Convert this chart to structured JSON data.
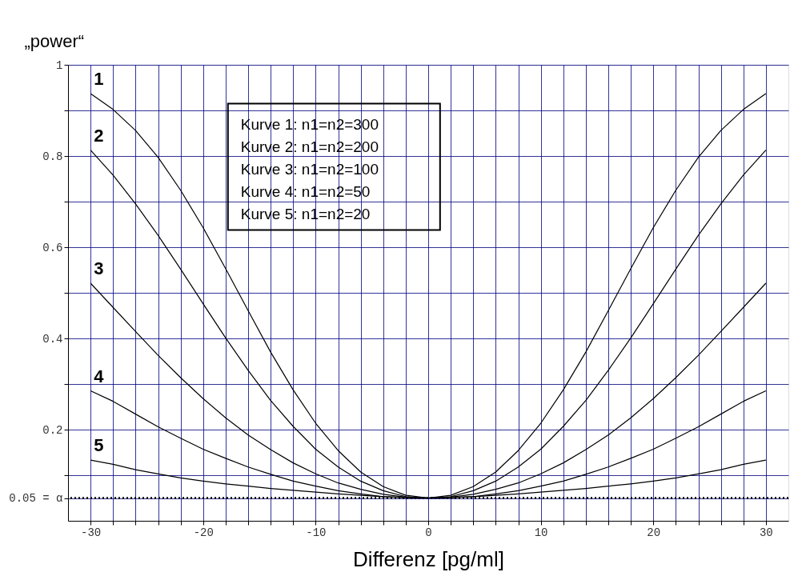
{
  "chart_data": {
    "type": "line",
    "ylabel": "„power“",
    "xlabel": "Differenz [pg/ml]",
    "x": [
      -30,
      -28,
      -26,
      -24,
      -22,
      -20,
      -18,
      -16,
      -14,
      -12,
      -10,
      -8,
      -6,
      -4,
      -2,
      0,
      2,
      4,
      6,
      8,
      10,
      12,
      14,
      16,
      18,
      20,
      22,
      24,
      26,
      28,
      30
    ],
    "series": [
      {
        "name": "1",
        "color": "#000000",
        "values": [
          0.937,
          0.902,
          0.856,
          0.797,
          0.725,
          0.643,
          0.553,
          0.461,
          0.37,
          0.287,
          0.214,
          0.154,
          0.107,
          0.075,
          0.056,
          0.05,
          0.056,
          0.075,
          0.107,
          0.154,
          0.214,
          0.287,
          0.37,
          0.461,
          0.553,
          0.643,
          0.725,
          0.797,
          0.856,
          0.902,
          0.937
        ]
      },
      {
        "name": "2",
        "color": "#000000",
        "values": [
          0.813,
          0.758,
          0.695,
          0.626,
          0.552,
          0.476,
          0.401,
          0.33,
          0.264,
          0.207,
          0.157,
          0.118,
          0.087,
          0.066,
          0.053,
          0.05,
          0.053,
          0.066,
          0.087,
          0.118,
          0.157,
          0.207,
          0.264,
          0.33,
          0.401,
          0.476,
          0.552,
          0.626,
          0.695,
          0.758,
          0.813
        ]
      },
      {
        "name": "3",
        "color": "#000000",
        "values": [
          0.521,
          0.468,
          0.415,
          0.363,
          0.314,
          0.268,
          0.226,
          0.188,
          0.156,
          0.127,
          0.103,
          0.083,
          0.069,
          0.058,
          0.052,
          0.05,
          0.052,
          0.058,
          0.069,
          0.083,
          0.103,
          0.127,
          0.156,
          0.188,
          0.226,
          0.268,
          0.314,
          0.363,
          0.415,
          0.468,
          0.521
        ]
      },
      {
        "name": "4",
        "color": "#000000",
        "values": [
          0.285,
          0.262,
          0.234,
          0.206,
          0.181,
          0.157,
          0.137,
          0.118,
          0.102,
          0.087,
          0.076,
          0.066,
          0.059,
          0.053,
          0.051,
          0.05,
          0.051,
          0.053,
          0.059,
          0.066,
          0.076,
          0.087,
          0.102,
          0.118,
          0.137,
          0.157,
          0.181,
          0.206,
          0.234,
          0.262,
          0.285
        ]
      },
      {
        "name": "5",
        "color": "#000000",
        "values": [
          0.133,
          0.124,
          0.112,
          0.103,
          0.094,
          0.087,
          0.081,
          0.076,
          0.071,
          0.067,
          0.063,
          0.059,
          0.056,
          0.053,
          0.051,
          0.05,
          0.051,
          0.053,
          0.056,
          0.059,
          0.063,
          0.067,
          0.071,
          0.076,
          0.081,
          0.087,
          0.094,
          0.103,
          0.112,
          0.124,
          0.133
        ]
      }
    ],
    "xlim": [
      -32,
      32
    ],
    "xticks": [
      -30,
      {
        "value": -28,
        "label": null
      },
      {
        "value": -26,
        "label": null
      },
      {
        "value": -24,
        "label": null
      },
      {
        "value": -22,
        "label": null
      },
      -20,
      {
        "value": -18,
        "label": null
      },
      {
        "value": -16,
        "label": null
      },
      {
        "value": -14,
        "label": null
      },
      {
        "value": -12,
        "label": null
      },
      -10,
      {
        "value": -8,
        "label": null
      },
      {
        "value": -6,
        "label": null
      },
      {
        "value": -4,
        "label": null
      },
      {
        "value": -2,
        "label": null
      },
      0,
      {
        "value": 2,
        "label": null
      },
      {
        "value": 4,
        "label": null
      },
      {
        "value": 6,
        "label": null
      },
      {
        "value": 8,
        "label": null
      },
      10,
      {
        "value": 12,
        "label": null
      },
      {
        "value": 14,
        "label": null
      },
      {
        "value": 16,
        "label": null
      },
      {
        "value": 18,
        "label": null
      },
      20,
      {
        "value": 22,
        "label": null
      },
      {
        "value": 24,
        "label": null
      },
      {
        "value": 26,
        "label": null
      },
      {
        "value": 28,
        "label": null
      },
      30
    ],
    "ylim": [
      0,
      1
    ],
    "yticks": [
      {
        "value": 0.05,
        "label": "0.05 = α"
      },
      {
        "value": 0.1,
        "label": null
      },
      0.2,
      {
        "value": 0.3,
        "label": null
      },
      0.4,
      {
        "value": 0.5,
        "label": null
      },
      0.6,
      {
        "value": 0.7,
        "label": null
      },
      0.8,
      {
        "value": 0.9,
        "label": null
      },
      1
    ],
    "grid": true,
    "line_style": "solid",
    "ref_lines": [
      {
        "axis": "y",
        "value": 0.05,
        "label": null,
        "color": "#000000",
        "line_style": "dotted"
      }
    ],
    "annotations": [
      "Kurve 1: n1=n2=300",
      "Kurve 2: n1=n2=200",
      "Kurve 3: n1=n2=100",
      "Kurve 4: n1=n2=50",
      "Kurve 5: n1=n2=20"
    ]
  }
}
